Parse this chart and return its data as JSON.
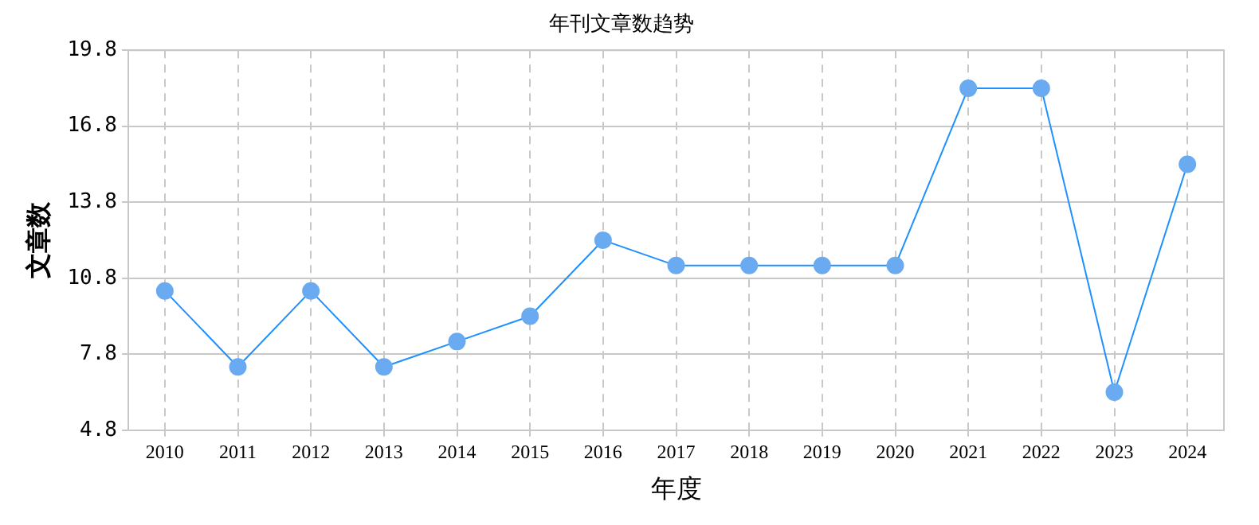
{
  "chart_data": {
    "type": "line",
    "title": "年刊文章数趋势",
    "xlabel": "年度",
    "ylabel": "文章数",
    "categories": [
      "2010",
      "2011",
      "2012",
      "2013",
      "2014",
      "2015",
      "2016",
      "2017",
      "2018",
      "2019",
      "2020",
      "2021",
      "2022",
      "2023",
      "2024"
    ],
    "series": [
      {
        "color": "#1e90ff",
        "values": [
          10.3,
          7.3,
          10.3,
          7.3,
          8.3,
          9.3,
          12.3,
          11.3,
          11.3,
          11.3,
          11.3,
          18.3,
          18.3,
          6.3,
          15.3
        ]
      }
    ],
    "ylim": [
      4.8,
      19.8
    ],
    "yticks": [
      4.8,
      7.8,
      10.8,
      13.8,
      16.8,
      19.8
    ],
    "grid": true,
    "marker": "circle",
    "line_style": "solid",
    "legend": false
  }
}
